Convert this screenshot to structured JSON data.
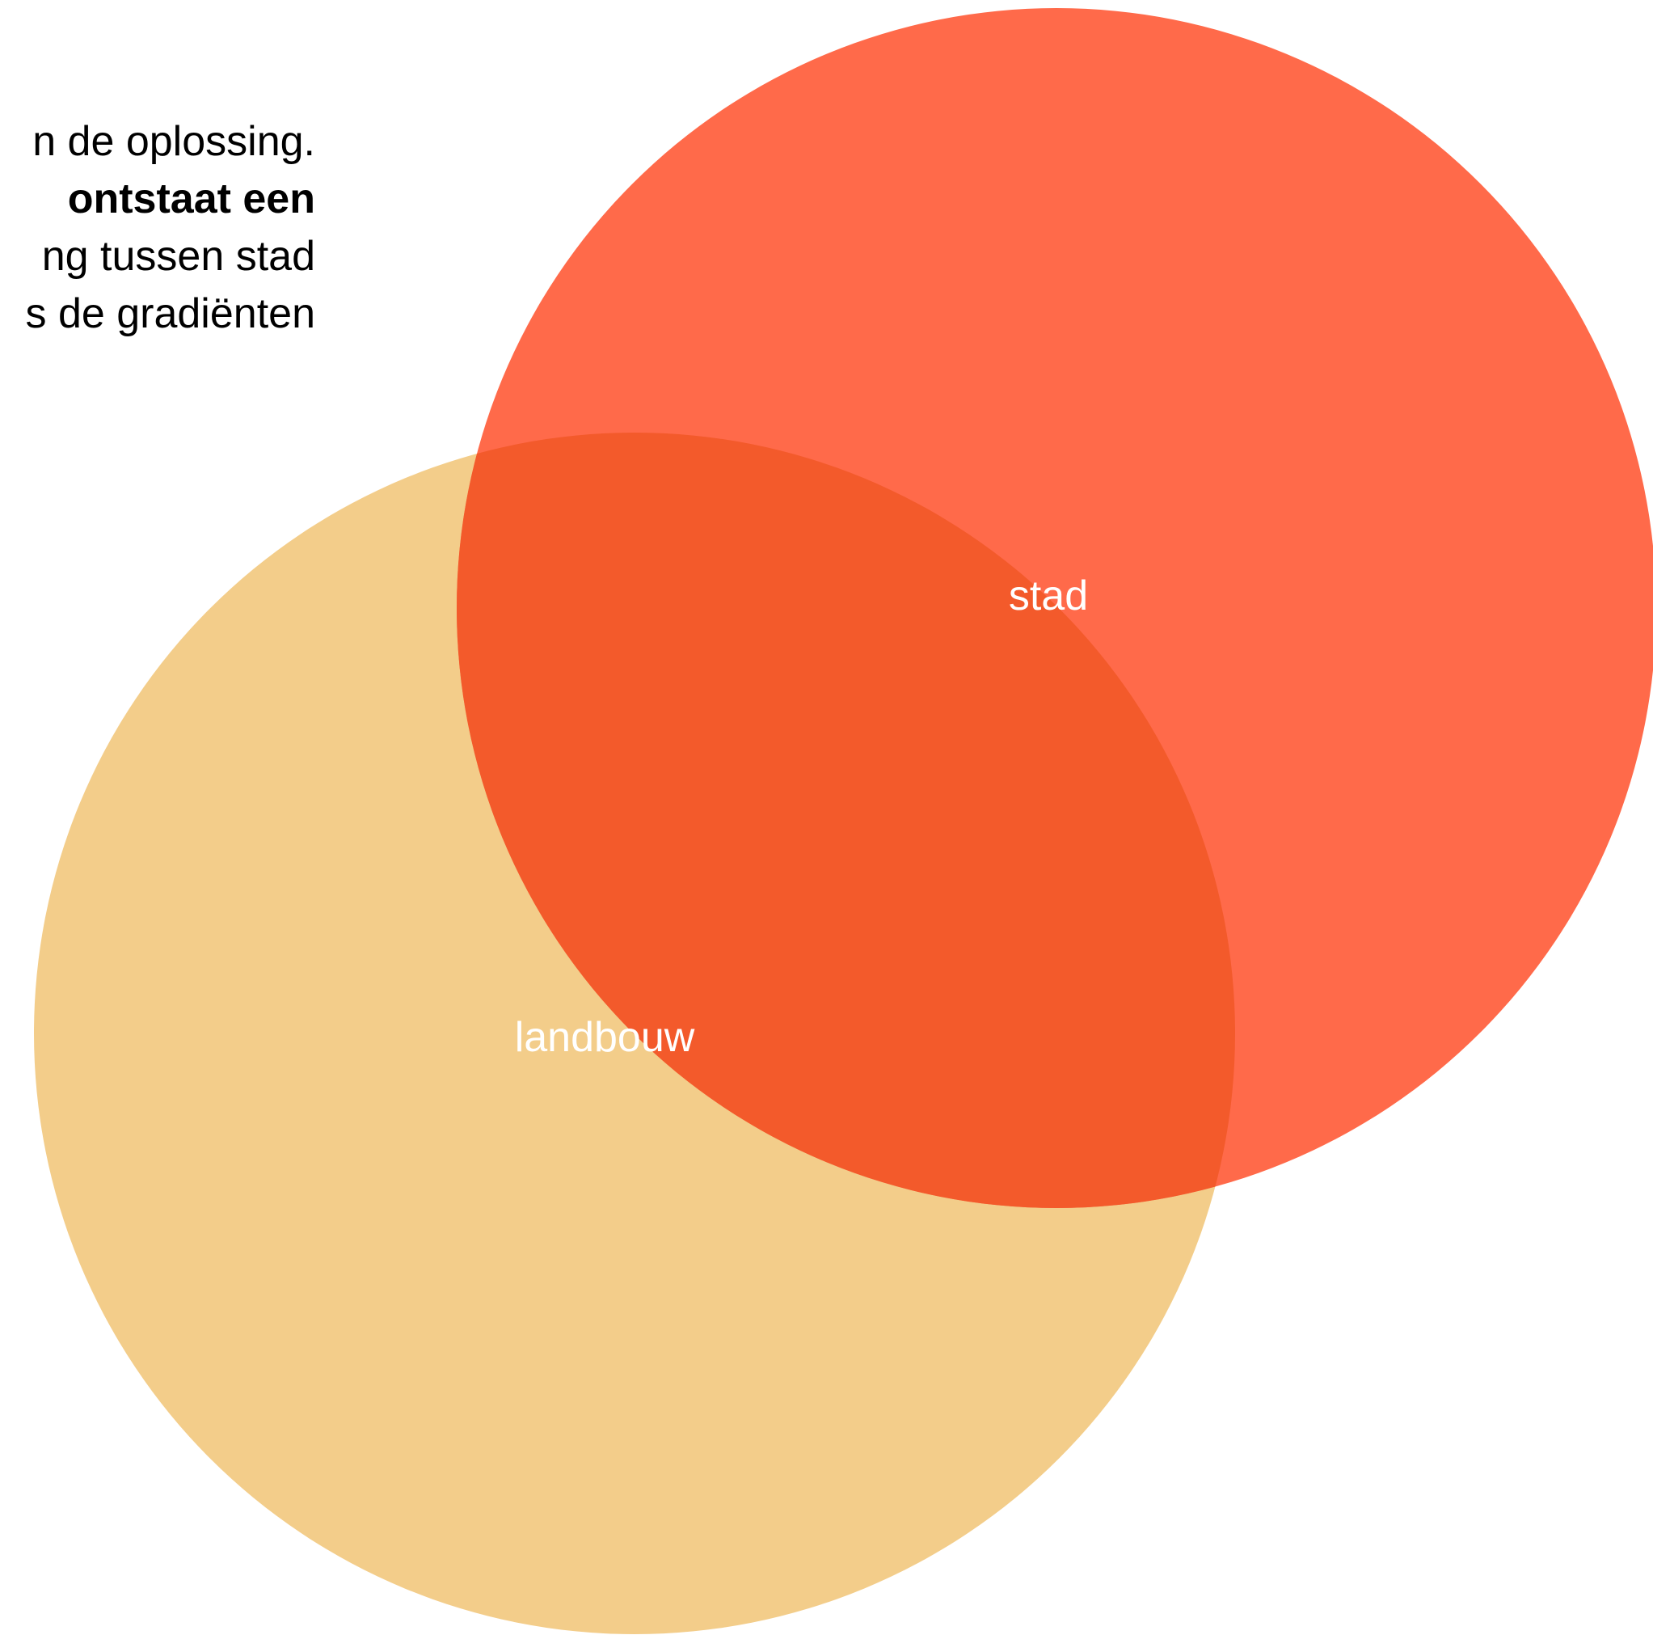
{
  "intro_text": {
    "lines": [
      {
        "text": "n de oplossing.",
        "bold": false
      },
      {
        "text": "ontstaat een",
        "bold": true
      },
      {
        "text": "ng tussen stad",
        "bold": false
      },
      {
        "text": "s de gradiënten",
        "bold": false
      }
    ]
  },
  "circles": {
    "landbouw": {
      "label": "landbouw",
      "color": "#f3cd8a"
    },
    "stad": {
      "label": "stad",
      "color": "#ff6a4a"
    },
    "overlap_color": "#f35a2b"
  }
}
